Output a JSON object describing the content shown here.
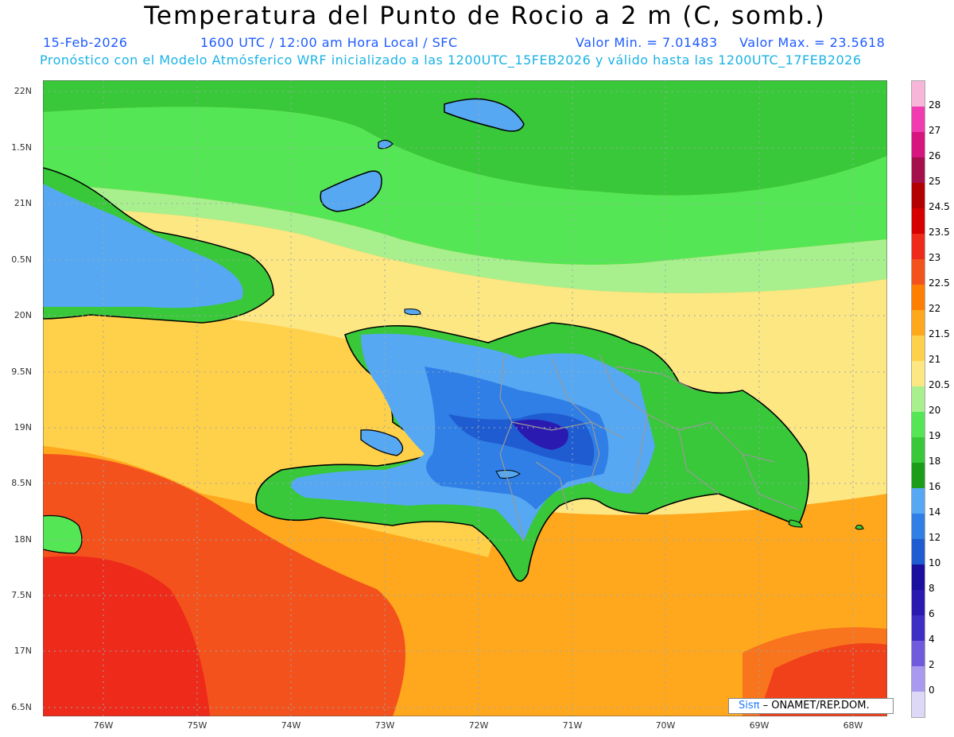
{
  "header": {
    "title": "Temperatura del Punto de Rocio a 2 m (C, somb.)",
    "date": "15-Feb-2026",
    "time": "1600 UTC / 12:00 am Hora Local / SFC",
    "vmin": "Valor Min. = 7.01483",
    "vmax": "Valor Max. = 23.5618",
    "model_line": "Pronóstico con el Modelo Atmósferico WRF inicializado a las 1200UTC_15FEB2026 y válido hasta las  1200UTC_17FEB2026"
  },
  "axes": {
    "lat_labels": [
      "22N",
      "1.5N",
      "21N",
      "0.5N",
      "20N",
      "9.5N",
      "19N",
      "8.5N",
      "18N",
      "7.5N",
      "17N",
      "6.5N"
    ],
    "lon_labels": [
      "76W",
      "75W",
      "74W",
      "73W",
      "72W",
      "71W",
      "70W",
      "69W",
      "68W"
    ]
  },
  "colorbar": {
    "labels": [
      "28",
      "27",
      "26",
      "25",
      "24.5",
      "23.5",
      "23",
      "22.5",
      "22",
      "21.5",
      "21",
      "20.5",
      "20",
      "19",
      "18",
      "16",
      "14",
      "12",
      "10",
      "8",
      "6",
      "4",
      "2",
      "0"
    ],
    "colors": [
      "#f7b6d9",
      "#f03cb0",
      "#d6167e",
      "#a50f4c",
      "#b30000",
      "#d60000",
      "#ee2a1a",
      "#f4521c",
      "#ff7f00",
      "#ffa81e",
      "#ffd04a",
      "#fde783",
      "#a8f08e",
      "#55e655",
      "#39c839",
      "#1a9e1a",
      "#56a8f2",
      "#2f7fe6",
      "#1f5cd1",
      "#1a0f9e",
      "#2a1ab0",
      "#3d2ec4",
      "#6f5bdc",
      "#a99af0",
      "#dcd8f5"
    ]
  },
  "credit": {
    "logo": "Sisπ",
    "text": "– ONAMET/REP.DOM."
  }
}
